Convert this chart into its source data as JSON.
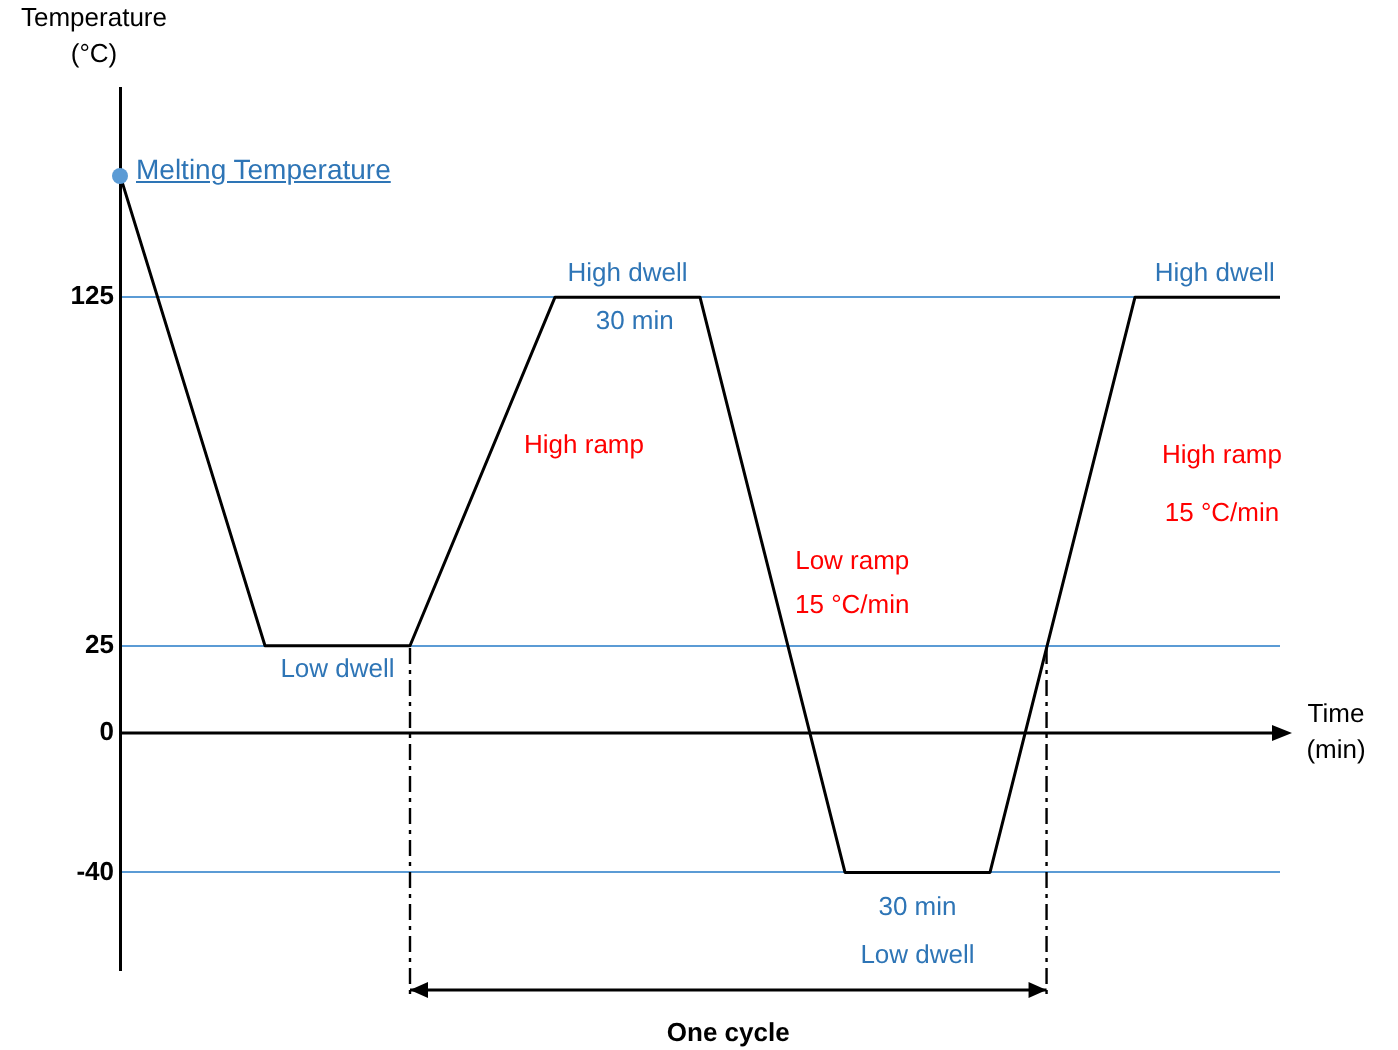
{
  "chart_data": {
    "type": "line",
    "ylabel": "Temperature\n(°C)",
    "xlabel": "Time\n(min)",
    "categories": [
      null,
      null,
      null,
      null,
      null,
      null,
      null,
      null,
      null
    ],
    "series": [
      {
        "color": "#000000",
        "values": [
          160,
          25,
          25,
          125,
          125,
          -40,
          -40,
          125,
          125
        ]
      }
    ],
    "ylim": [
      -68,
      185
    ],
    "yticks": [
      -40,
      0,
      25,
      125
    ],
    "grid": "y",
    "legend": false,
    "marker": "none",
    "line_style": "solid",
    "tick_labels": "y",
    "annotations": [
      "Melting Temperature",
      "High dwell",
      "30 min",
      "High ramp",
      "Low ramp",
      "15 °C/min",
      "Low dwell",
      "30 min",
      "Low dwell",
      "High dwell",
      "High ramp",
      "15 °C/min",
      "One cycle"
    ]
  }
}
